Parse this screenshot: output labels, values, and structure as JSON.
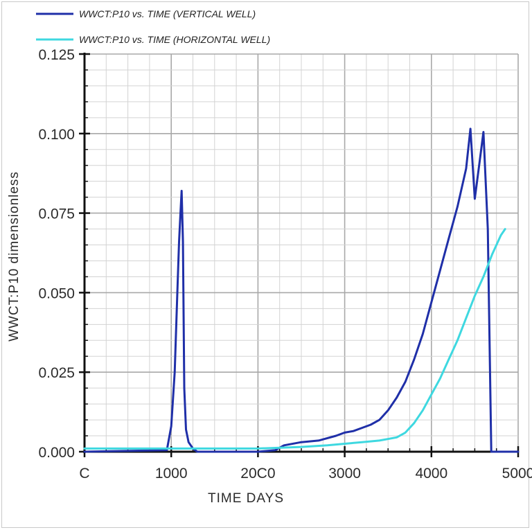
{
  "chart_data": {
    "type": "line",
    "title": "",
    "xlabel": "TIME  DAYS",
    "ylabel": "WWCT:P10   dimensionless",
    "xlim": [
      0,
      5000
    ],
    "ylim": [
      0,
      0.125
    ],
    "grid": true,
    "legend_position": "top-left",
    "x_tick_labels": [
      {
        "value": 0,
        "label": "C"
      },
      {
        "value": 1000,
        "label": "1000"
      },
      {
        "value": 2000,
        "label": "20C0"
      },
      {
        "value": 3000,
        "label": "3000"
      },
      {
        "value": 4000,
        "label": "4000"
      },
      {
        "value": 5000,
        "label": "5000"
      }
    ],
    "y_tick_labels": [
      {
        "value": 0,
        "label": "0.000"
      },
      {
        "value": 0.025,
        "label": "0.025"
      },
      {
        "value": 0.05,
        "label": "0.050"
      },
      {
        "value": 0.075,
        "label": "0.075"
      },
      {
        "value": 0.1,
        "label": "0.100"
      },
      {
        "value": 0.125,
        "label": "0.125"
      }
    ],
    "series": [
      {
        "name": "WWCT:P10  vs.  TIME (VERTICAL WELL)",
        "color": "#1f2fa8",
        "x": [
          0,
          950,
          1000,
          1040,
          1070,
          1090,
          1105,
          1120,
          1135,
          1150,
          1170,
          1200,
          1250,
          1300,
          1400,
          2000,
          2200,
          2300,
          2500,
          2700,
          2900,
          3000,
          3100,
          3200,
          3300,
          3400,
          3500,
          3600,
          3700,
          3800,
          3900,
          4000,
          4100,
          4200,
          4300,
          4400,
          4450,
          4500,
          4550,
          4600,
          4650,
          4670,
          4690,
          4710,
          4720,
          5000
        ],
        "y": [
          0,
          0.0005,
          0.008,
          0.025,
          0.05,
          0.066,
          0.074,
          0.082,
          0.066,
          0.02,
          0.007,
          0.003,
          0.001,
          0,
          0,
          0,
          0.0005,
          0.002,
          0.003,
          0.0035,
          0.005,
          0.006,
          0.0065,
          0.0075,
          0.0085,
          0.01,
          0.013,
          0.017,
          0.022,
          0.029,
          0.037,
          0.047,
          0.057,
          0.067,
          0.077,
          0.089,
          0.1015,
          0.0795,
          0.09,
          0.1005,
          0.07,
          0.035,
          0,
          0,
          0,
          0
        ]
      },
      {
        "name": "WWCT:P10  vs.  TIME  (HORIZONTAL WELL)",
        "color": "#3ed8e0",
        "x": [
          0,
          1000,
          2000,
          2500,
          2800,
          3000,
          3200,
          3400,
          3600,
          3700,
          3800,
          3900,
          4000,
          4100,
          4200,
          4300,
          4400,
          4500,
          4600,
          4700,
          4800,
          4850
        ],
        "y": [
          0.001,
          0.001,
          0.001,
          0.0015,
          0.002,
          0.0025,
          0.003,
          0.0035,
          0.0045,
          0.006,
          0.009,
          0.013,
          0.018,
          0.023,
          0.029,
          0.035,
          0.042,
          0.049,
          0.055,
          0.062,
          0.068,
          0.07
        ]
      }
    ]
  }
}
